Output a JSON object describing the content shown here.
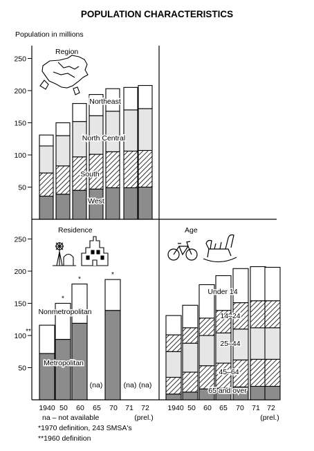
{
  "title": "POPULATION CHARACTERISTICS",
  "ylabel": "Population in millions",
  "footnotes": {
    "na": "na – not available",
    "f1": "*1970 definition, 243 SMSA's",
    "f2": "**1960 definition"
  },
  "colors": {
    "dark": "#8c8c8c",
    "light": "#e6e6e6",
    "white": "#ffffff",
    "ink": "#000000"
  },
  "icons": [
    "us-map-icon",
    "windmill-farm-icon",
    "city-skyline-icon",
    "bicycle-icon",
    "rocking-chair-icon"
  ],
  "chart_data": [
    {
      "type": "bar",
      "stacked": true,
      "title": "Region",
      "ylim": [
        0,
        250
      ],
      "yticks": [
        50,
        100,
        150,
        200,
        250
      ],
      "categories": [
        "1940",
        "50",
        "60",
        "65",
        "70",
        "71",
        "72"
      ],
      "series": [
        {
          "name": "Northeast",
          "fill": "dark",
          "values": [
            36,
            39,
            45,
            47,
            49,
            49,
            50
          ]
        },
        {
          "name": "North Central",
          "fill": "hatch",
          "values": [
            36,
            44,
            52,
            54,
            56,
            57,
            57
          ]
        },
        {
          "name": "South",
          "fill": "light",
          "values": [
            42,
            47,
            55,
            60,
            63,
            64,
            65
          ]
        },
        {
          "name": "West",
          "fill": "white",
          "values": [
            17,
            20,
            28,
            33,
            35,
            35,
            36
          ]
        }
      ]
    },
    {
      "type": "bar",
      "stacked": true,
      "title": "Residence",
      "ylim": [
        0,
        250
      ],
      "yticks": [
        50,
        100,
        150,
        200,
        250
      ],
      "categories": [
        "1940",
        "50",
        "60",
        "65",
        "70",
        "71",
        "72"
      ],
      "series": [
        {
          "name": "Metropolitan",
          "fill": "dark",
          "values": [
            72,
            94,
            119,
            null,
            139,
            null,
            null
          ]
        },
        {
          "name": "Nonmetropolitan",
          "fill": "white",
          "values": [
            44,
            56,
            61,
            null,
            48,
            null,
            null
          ]
        }
      ],
      "markers": [
        "**",
        "*",
        "*",
        "",
        "*",
        "",
        ""
      ],
      "na_label": "(na)",
      "na_categories": [
        "65",
        "71",
        "72"
      ]
    },
    {
      "type": "bar",
      "stacked": true,
      "title": "Age",
      "ylim": [
        0,
        250
      ],
      "categories": [
        "1940",
        "50",
        "60",
        "65",
        "70",
        "71",
        "72"
      ],
      "series": [
        {
          "name": "65 and over",
          "fill": "dark",
          "values": [
            9,
            12,
            17,
            18,
            20,
            21,
            21
          ]
        },
        {
          "name": "45–64",
          "fill": "hatch",
          "values": [
            26,
            31,
            36,
            39,
            42,
            42,
            42
          ]
        },
        {
          "name": "25–44",
          "fill": "light",
          "values": [
            40,
            45,
            47,
            47,
            48,
            49,
            49
          ]
        },
        {
          "name": "14–24",
          "fill": "hatch",
          "values": [
            26,
            24,
            27,
            35,
            41,
            42,
            42
          ]
        },
        {
          "name": "Under 14",
          "fill": "white",
          "values": [
            30,
            35,
            52,
            54,
            53,
            53,
            52
          ]
        }
      ]
    }
  ],
  "xlabels": {
    "left": [
      "1940",
      "50",
      "60",
      "65",
      "70",
      "71",
      "72"
    ],
    "right": [
      "1940",
      "50",
      "60",
      "65",
      "70",
      "71",
      "72"
    ],
    "prel": "(prel.)"
  }
}
